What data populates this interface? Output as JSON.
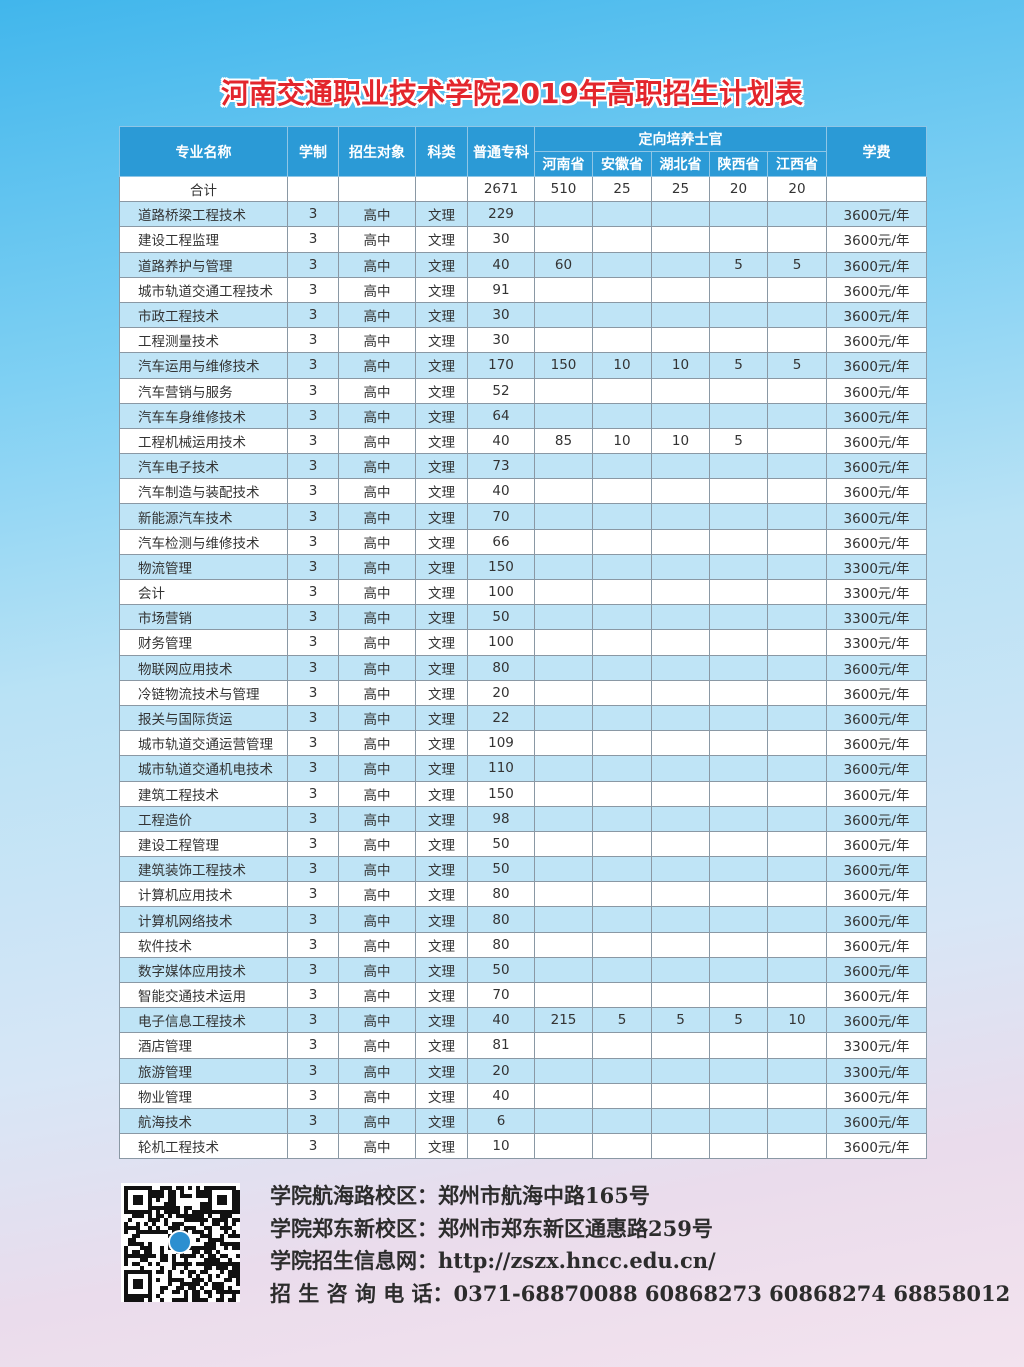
{
  "title": "河南交通职业技术学院2019年高职招生计划表",
  "header": {
    "name": "专业名称",
    "years": "学制",
    "target": "招生对象",
    "category": "科类",
    "regular": "普通专科",
    "directed": "定向培养士官",
    "provinces": [
      "河南省",
      "安徽省",
      "湖北省",
      "陕西省",
      "江西省"
    ],
    "fee": "学费"
  },
  "total": {
    "label": "合计",
    "regular": "2671",
    "provinces": [
      "510",
      "25",
      "25",
      "20",
      "20"
    ]
  },
  "rows": [
    [
      "道路桥梁工程技术",
      "3",
      "高中",
      "文理",
      "229",
      "",
      "",
      "",
      "",
      "",
      "3600元/年"
    ],
    [
      "建设工程监理",
      "3",
      "高中",
      "文理",
      "30",
      "",
      "",
      "",
      "",
      "",
      "3600元/年"
    ],
    [
      "道路养护与管理",
      "3",
      "高中",
      "文理",
      "40",
      "60",
      "",
      "",
      "5",
      "5",
      "3600元/年"
    ],
    [
      "城市轨道交通工程技术",
      "3",
      "高中",
      "文理",
      "91",
      "",
      "",
      "",
      "",
      "",
      "3600元/年"
    ],
    [
      "市政工程技术",
      "3",
      "高中",
      "文理",
      "30",
      "",
      "",
      "",
      "",
      "",
      "3600元/年"
    ],
    [
      "工程测量技术",
      "3",
      "高中",
      "文理",
      "30",
      "",
      "",
      "",
      "",
      "",
      "3600元/年"
    ],
    [
      "汽车运用与维修技术",
      "3",
      "高中",
      "文理",
      "170",
      "150",
      "10",
      "10",
      "5",
      "5",
      "3600元/年"
    ],
    [
      "汽车营销与服务",
      "3",
      "高中",
      "文理",
      "52",
      "",
      "",
      "",
      "",
      "",
      "3600元/年"
    ],
    [
      "汽车车身维修技术",
      "3",
      "高中",
      "文理",
      "64",
      "",
      "",
      "",
      "",
      "",
      "3600元/年"
    ],
    [
      "工程机械运用技术",
      "3",
      "高中",
      "文理",
      "40",
      "85",
      "10",
      "10",
      "5",
      "",
      "3600元/年"
    ],
    [
      "汽车电子技术",
      "3",
      "高中",
      "文理",
      "73",
      "",
      "",
      "",
      "",
      "",
      "3600元/年"
    ],
    [
      "汽车制造与装配技术",
      "3",
      "高中",
      "文理",
      "40",
      "",
      "",
      "",
      "",
      "",
      "3600元/年"
    ],
    [
      "新能源汽车技术",
      "3",
      "高中",
      "文理",
      "70",
      "",
      "",
      "",
      "",
      "",
      "3600元/年"
    ],
    [
      "汽车检测与维修技术",
      "3",
      "高中",
      "文理",
      "66",
      "",
      "",
      "",
      "",
      "",
      "3600元/年"
    ],
    [
      "物流管理",
      "3",
      "高中",
      "文理",
      "150",
      "",
      "",
      "",
      "",
      "",
      "3300元/年"
    ],
    [
      "会计",
      "3",
      "高中",
      "文理",
      "100",
      "",
      "",
      "",
      "",
      "",
      "3300元/年"
    ],
    [
      "市场营销",
      "3",
      "高中",
      "文理",
      "50",
      "",
      "",
      "",
      "",
      "",
      "3300元/年"
    ],
    [
      "财务管理",
      "3",
      "高中",
      "文理",
      "100",
      "",
      "",
      "",
      "",
      "",
      "3300元/年"
    ],
    [
      "物联网应用技术",
      "3",
      "高中",
      "文理",
      "80",
      "",
      "",
      "",
      "",
      "",
      "3600元/年"
    ],
    [
      "冷链物流技术与管理",
      "3",
      "高中",
      "文理",
      "20",
      "",
      "",
      "",
      "",
      "",
      "3600元/年"
    ],
    [
      "报关与国际货运",
      "3",
      "高中",
      "文理",
      "22",
      "",
      "",
      "",
      "",
      "",
      "3600元/年"
    ],
    [
      "城市轨道交通运营管理",
      "3",
      "高中",
      "文理",
      "109",
      "",
      "",
      "",
      "",
      "",
      "3600元/年"
    ],
    [
      "城市轨道交通机电技术",
      "3",
      "高中",
      "文理",
      "110",
      "",
      "",
      "",
      "",
      "",
      "3600元/年"
    ],
    [
      "建筑工程技术",
      "3",
      "高中",
      "文理",
      "150",
      "",
      "",
      "",
      "",
      "",
      "3600元/年"
    ],
    [
      "工程造价",
      "3",
      "高中",
      "文理",
      "98",
      "",
      "",
      "",
      "",
      "",
      "3600元/年"
    ],
    [
      "建设工程管理",
      "3",
      "高中",
      "文理",
      "50",
      "",
      "",
      "",
      "",
      "",
      "3600元/年"
    ],
    [
      "建筑装饰工程技术",
      "3",
      "高中",
      "文理",
      "50",
      "",
      "",
      "",
      "",
      "",
      "3600元/年"
    ],
    [
      "计算机应用技术",
      "3",
      "高中",
      "文理",
      "80",
      "",
      "",
      "",
      "",
      "",
      "3600元/年"
    ],
    [
      "计算机网络技术",
      "3",
      "高中",
      "文理",
      "80",
      "",
      "",
      "",
      "",
      "",
      "3600元/年"
    ],
    [
      "软件技术",
      "3",
      "高中",
      "文理",
      "80",
      "",
      "",
      "",
      "",
      "",
      "3600元/年"
    ],
    [
      "数字媒体应用技术",
      "3",
      "高中",
      "文理",
      "50",
      "",
      "",
      "",
      "",
      "",
      "3600元/年"
    ],
    [
      "智能交通技术运用",
      "3",
      "高中",
      "文理",
      "70",
      "",
      "",
      "",
      "",
      "",
      "3600元/年"
    ],
    [
      "电子信息工程技术",
      "3",
      "高中",
      "文理",
      "40",
      "215",
      "5",
      "5",
      "5",
      "10",
      "3600元/年"
    ],
    [
      "酒店管理",
      "3",
      "高中",
      "文理",
      "81",
      "",
      "",
      "",
      "",
      "",
      "3300元/年"
    ],
    [
      "旅游管理",
      "3",
      "高中",
      "文理",
      "20",
      "",
      "",
      "",
      "",
      "",
      "3300元/年"
    ],
    [
      "物业管理",
      "3",
      "高中",
      "文理",
      "40",
      "",
      "",
      "",
      "",
      "",
      "3600元/年"
    ],
    [
      "航海技术",
      "3",
      "高中",
      "文理",
      "6",
      "",
      "",
      "",
      "",
      "",
      "3600元/年"
    ],
    [
      "轮机工程技术",
      "3",
      "高中",
      "文理",
      "10",
      "",
      "",
      "",
      "",
      "",
      "3600元/年"
    ]
  ],
  "footer": {
    "campus1": "学院航海路校区：郑州市航海中路165号",
    "campus2": "学院郑东新校区：郑州市郑东新区通惠路259号",
    "website": "学院招生信息网：http://zszx.hncc.edu.cn/",
    "phone": "招 生 咨 询 电 话：0371-68870088  60868273  60868274  68858012"
  }
}
